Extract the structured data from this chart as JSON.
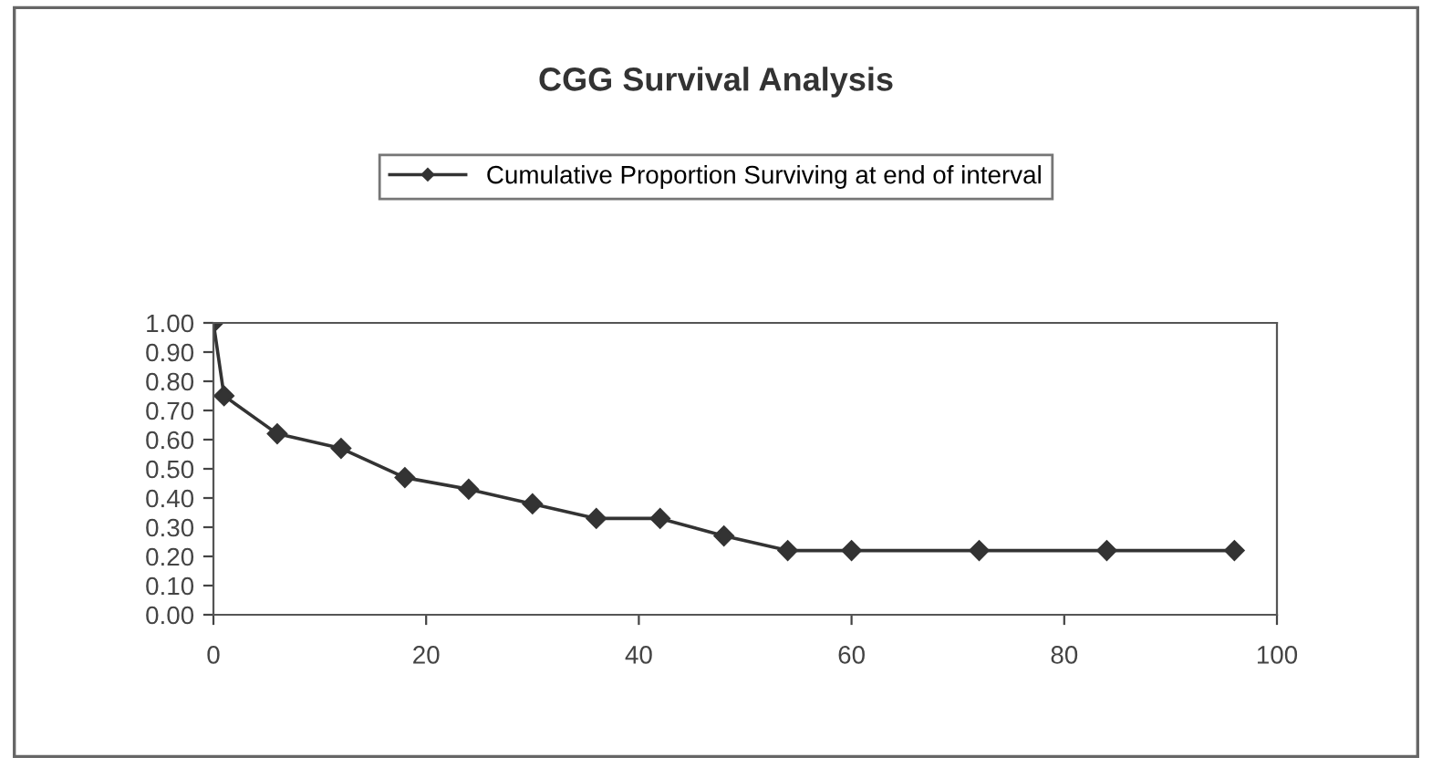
{
  "chart_data": {
    "type": "line",
    "title": "CGG Survival Analysis",
    "x": [
      0,
      1,
      6,
      12,
      18,
      24,
      30,
      36,
      42,
      48,
      54,
      60,
      72,
      84,
      96
    ],
    "series": [
      {
        "name": "Cumulative Proportion Surviving at end of interval",
        "color": "#333333",
        "values": [
          1.0,
          0.75,
          0.62,
          0.57,
          0.47,
          0.43,
          0.38,
          0.33,
          0.33,
          0.27,
          0.22,
          0.22,
          0.22,
          0.22,
          0.22
        ]
      }
    ],
    "xlim": [
      0,
      100
    ],
    "xticks": [
      0,
      20,
      40,
      60,
      80,
      100
    ],
    "ylim": [
      0,
      1
    ],
    "yticks": [
      {
        "value": 0,
        "label": "0.00"
      },
      {
        "value": 0.1,
        "label": "0.10"
      },
      {
        "value": 0.2,
        "label": "0.20"
      },
      {
        "value": 0.3,
        "label": "0.30"
      },
      {
        "value": 0.4,
        "label": "0.40"
      },
      {
        "value": 0.5,
        "label": "0.50"
      },
      {
        "value": 0.6,
        "label": "0.60"
      },
      {
        "value": 0.7,
        "label": "0.70"
      },
      {
        "value": 0.8,
        "label": "0.80"
      },
      {
        "value": 0.9,
        "label": "0.90"
      },
      {
        "value": 1,
        "label": "1.00"
      }
    ],
    "grid": false,
    "legend": "top",
    "marker": "diamond",
    "line_style": "solid"
  }
}
